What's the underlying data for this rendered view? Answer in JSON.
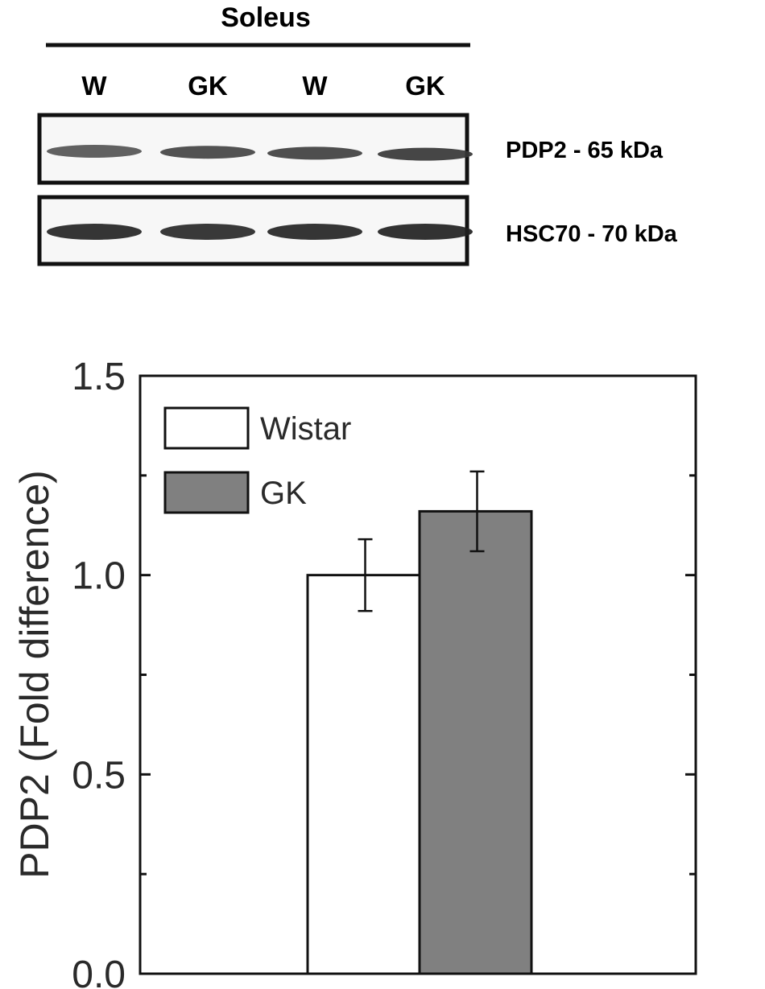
{
  "blot": {
    "title": "Soleus",
    "lanes": [
      "W",
      "GK",
      "W",
      "GK"
    ],
    "rows": [
      {
        "label": "PDP2 - 65 kDa",
        "band_intensity": [
          0.72,
          0.8,
          0.82,
          0.86
        ]
      },
      {
        "label": "HSC70 - 70 kDa",
        "band_intensity": [
          0.95,
          0.93,
          0.95,
          0.96
        ]
      }
    ]
  },
  "chart_data": {
    "type": "bar",
    "categories": [
      "Wistar",
      "GK"
    ],
    "values": [
      1.0,
      1.16
    ],
    "errors": [
      0.09,
      0.1
    ],
    "colors": [
      "#ffffff",
      "#808080"
    ],
    "ylabel": "PDP2 (Fold difference)",
    "xlabel": "",
    "ylim": [
      0,
      1.5
    ],
    "yticks": [
      0.0,
      0.5,
      1.0,
      1.5
    ],
    "ytick_labels": [
      "0.0",
      "0.5",
      "1.0",
      "1.5"
    ],
    "grid": false,
    "legend": {
      "placement": "top-left",
      "entries": [
        {
          "label": "Wistar",
          "color": "#ffffff"
        },
        {
          "label": "GK",
          "color": "#808080"
        }
      ]
    }
  }
}
